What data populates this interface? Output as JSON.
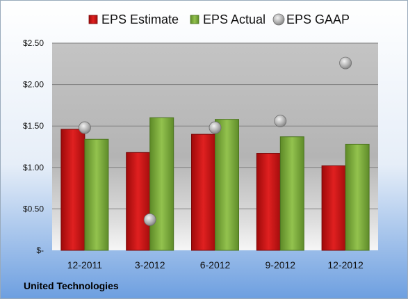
{
  "chart_data": {
    "type": "bar",
    "categories": [
      "12-2011",
      "3-2012",
      "6-2012",
      "9-2012",
      "12-2012"
    ],
    "series": [
      {
        "name": "EPS Estimate",
        "kind": "bar",
        "color": "#c81414",
        "values": [
          1.46,
          1.18,
          1.4,
          1.17,
          1.02
        ]
      },
      {
        "name": "EPS Actual",
        "kind": "bar",
        "color": "#7aa83a",
        "values": [
          1.34,
          1.6,
          1.58,
          1.37,
          1.28
        ]
      },
      {
        "name": "EPS GAAP",
        "kind": "scatter",
        "color": "#a8a8a8",
        "values": [
          1.48,
          0.37,
          1.48,
          1.56,
          2.26
        ]
      }
    ],
    "yticks": [
      {
        "value": 0,
        "label": "$-"
      },
      {
        "value": 0.5,
        "label": "$0.50"
      },
      {
        "value": 1.0,
        "label": "$1.00"
      },
      {
        "value": 1.5,
        "label": "$1.50"
      },
      {
        "value": 2.0,
        "label": "$2.00"
      },
      {
        "value": 2.5,
        "label": "$2.50"
      }
    ],
    "ylim": [
      0,
      2.5
    ],
    "grid": true,
    "legend": "top"
  },
  "company": "United Technologies"
}
